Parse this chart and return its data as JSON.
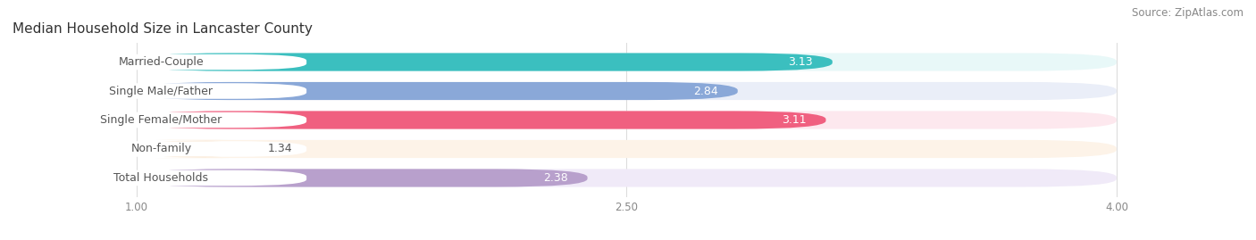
{
  "title": "Median Household Size in Lancaster County",
  "source": "Source: ZipAtlas.com",
  "categories": [
    "Married-Couple",
    "Single Male/Father",
    "Single Female/Mother",
    "Non-family",
    "Total Households"
  ],
  "values": [
    3.13,
    2.84,
    3.11,
    1.34,
    2.38
  ],
  "bar_colors": [
    "#3bbfbf",
    "#8aa8d8",
    "#f06080",
    "#f5c896",
    "#b8a0cc"
  ],
  "bar_bg_colors": [
    "#e8f8f8",
    "#eaeef8",
    "#fde8ee",
    "#fdf3e8",
    "#f0eaf8"
  ],
  "label_bg_color": "#ffffff",
  "label_text_color": "#555555",
  "value_color_inside": "#ffffff",
  "value_color_outside": "#555555",
  "xdata_min": 1.0,
  "xdata_max": 4.0,
  "xlim_min": 0.62,
  "xlim_max": 4.35,
  "xticks": [
    1.0,
    2.5,
    4.0
  ],
  "xtick_labels": [
    "1.00",
    "2.50",
    "4.00"
  ],
  "title_fontsize": 11,
  "label_fontsize": 9,
  "value_fontsize": 9,
  "source_fontsize": 8.5,
  "bg_color": "#ffffff",
  "grid_color": "#dddddd"
}
